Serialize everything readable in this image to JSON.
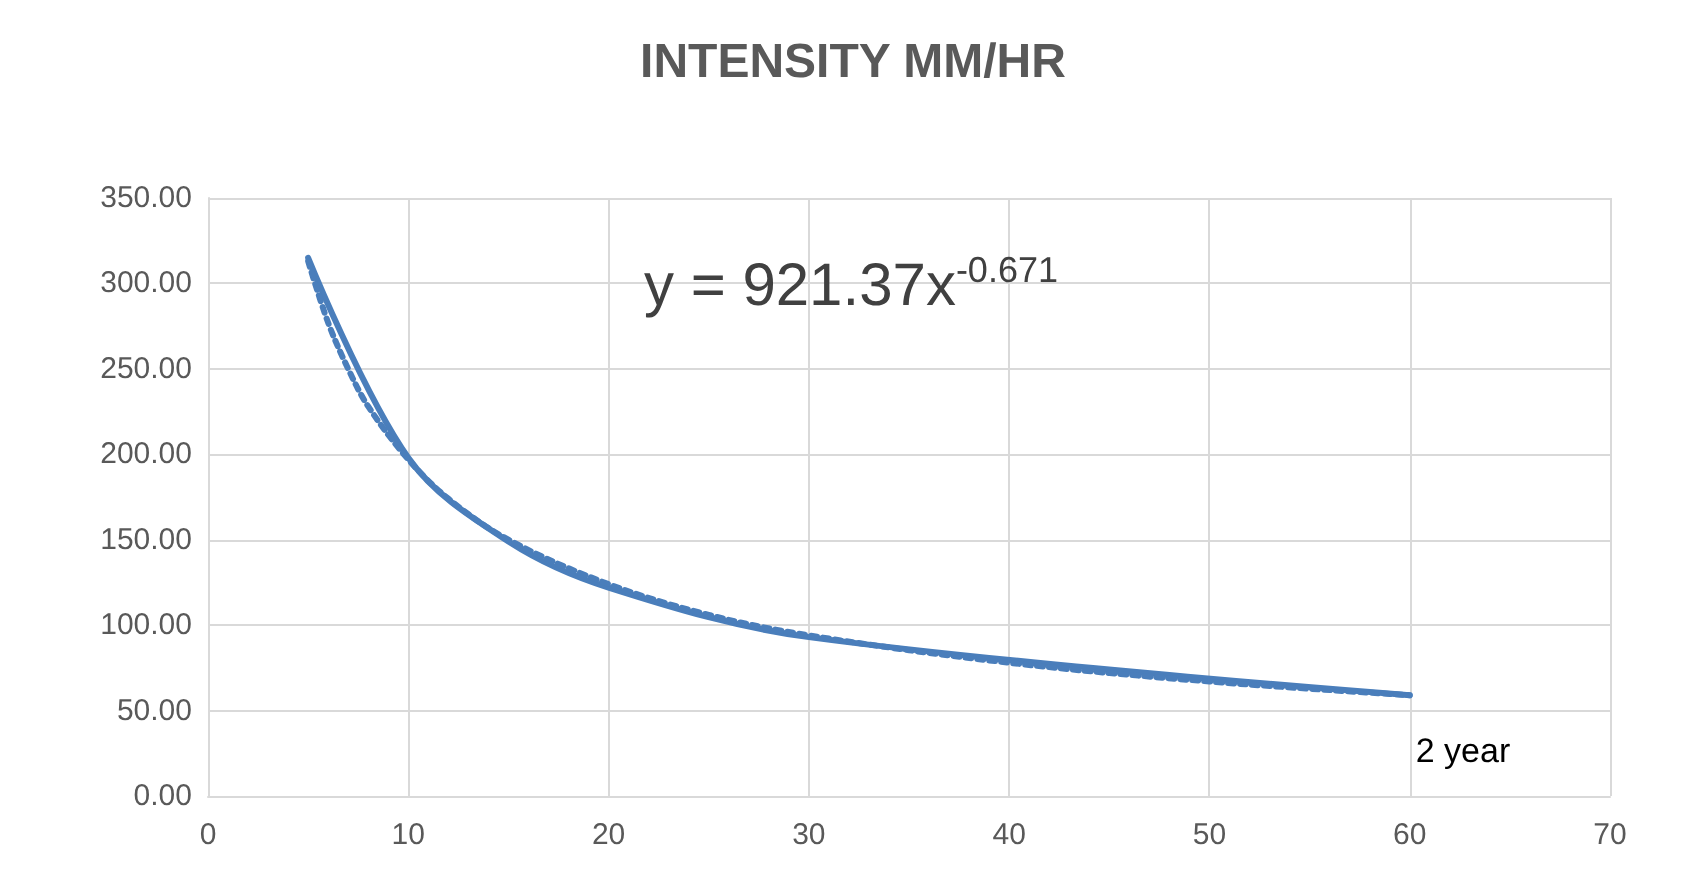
{
  "chart_data": {
    "type": "line",
    "title": "INTENSITY MM/HR",
    "annotations": [
      "y = 921.37x$^{-0.671}$"
    ],
    "series": [
      {
        "name": "2 year",
        "color": "#4a7ebb",
        "x": [
          5,
          10,
          15,
          20,
          30,
          60
        ],
        "values": [
          315,
          198,
          149,
          122,
          93,
          59
        ],
        "line_style": "solid"
      },
      {
        "color": "#4a7ebb",
        "x": [
          5,
          6,
          7,
          8,
          10,
          12,
          15,
          20,
          25,
          30,
          40,
          50,
          60
        ],
        "values": [
          313,
          277,
          250,
          228,
          197,
          174,
          150,
          124,
          106,
          94,
          78,
          67,
          59
        ],
        "line_style": "dotted"
      }
    ],
    "xlim": [
      0,
      70
    ],
    "xticks": [
      0,
      10,
      20,
      30,
      40,
      50,
      60,
      70
    ],
    "ylim": [
      0,
      350
    ],
    "yticks": [
      {
        "value": 0,
        "label": "0.00"
      },
      {
        "value": 50,
        "label": "50.00"
      },
      {
        "value": 100,
        "label": "100.00"
      },
      {
        "value": 150,
        "label": "150.00"
      },
      {
        "value": 200,
        "label": "200.00"
      },
      {
        "value": 250,
        "label": "250.00"
      },
      {
        "value": 300,
        "label": "300.00"
      },
      {
        "value": 350,
        "label": "350.00"
      }
    ],
    "grid": true,
    "legend": false,
    "marker": "none"
  }
}
